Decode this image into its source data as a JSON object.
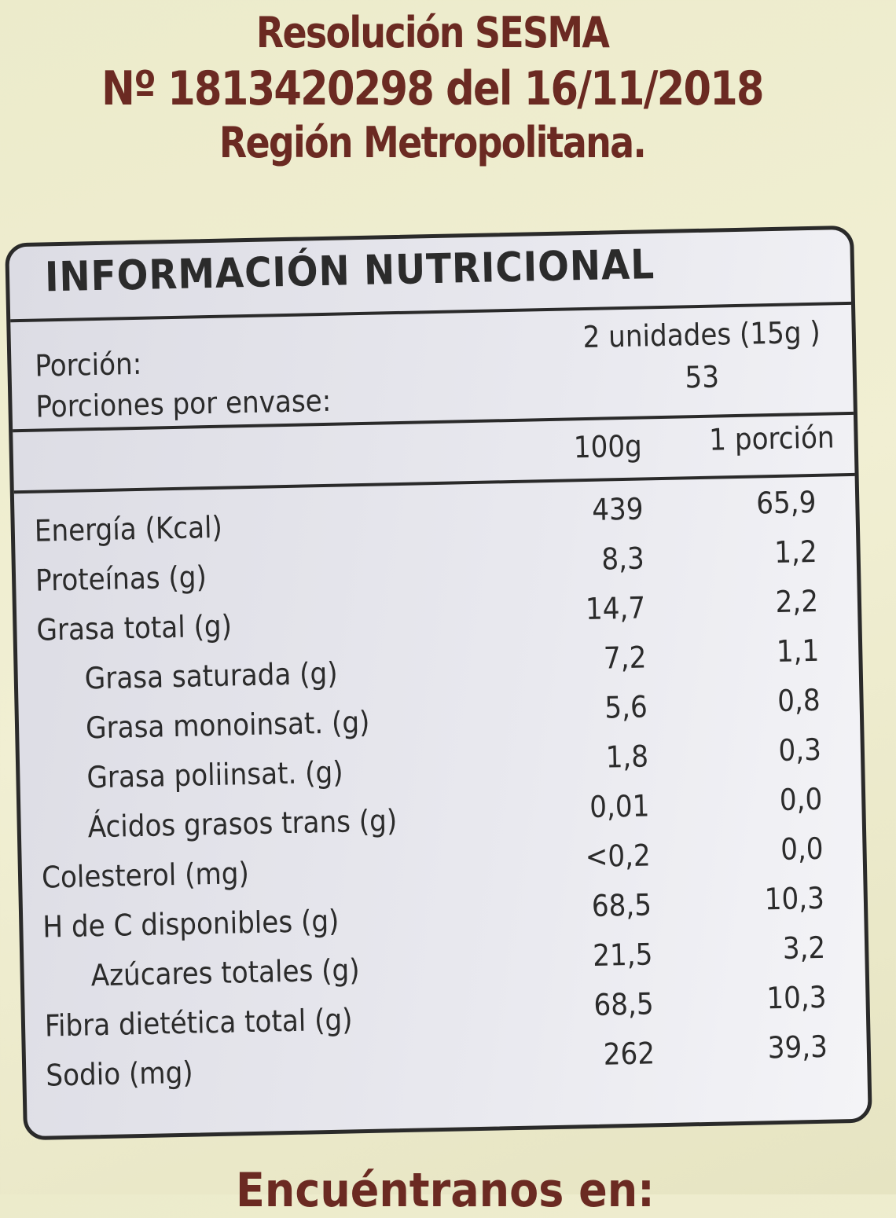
{
  "header_text": {
    "line1": "Resolución SESMA",
    "line2": "Nº 1813420298 del 16/11/2018",
    "line3": "Región Metropolitana."
  },
  "label": {
    "title": "INFORMACIÓN NUTRICIONAL",
    "portion_label": "Porción:",
    "portion_value": "2 unidades (15g )",
    "servings_label": "Porciones por envase:",
    "servings_value": "53",
    "col_100g": "100g",
    "col_portion": "1 porción",
    "rows": [
      {
        "name": "Energía (Kcal)",
        "v100": "439",
        "vpor": "65,9"
      },
      {
        "name": "Proteínas (g)",
        "v100": "8,3",
        "vpor": "1,2"
      },
      {
        "name": "Grasa total (g)",
        "v100": "14,7",
        "vpor": "2,2"
      },
      {
        "name": "Grasa saturada  (g)",
        "v100": "7,2",
        "vpor": "1,1"
      },
      {
        "name": "Grasa monoinsat. (g)",
        "v100": "5,6",
        "vpor": "0,8"
      },
      {
        "name": "Grasa poliinsat. (g)",
        "v100": "1,8",
        "vpor": "0,3"
      },
      {
        "name": "Ácidos grasos trans (g)",
        "v100": "0,01",
        "vpor": "0,0"
      },
      {
        "name": "Colesterol (mg)",
        "v100": "<0,2",
        "vpor": "0,0"
      },
      {
        "name": "H de C disponibles (g)",
        "v100": "68,5",
        "vpor": "10,3"
      },
      {
        "name": "Azúcares totales (g)",
        "v100": "21,5",
        "vpor": "3,2"
      },
      {
        "name": "Fibra dietética total (g)",
        "v100": "68,5",
        "vpor": "10,3"
      },
      {
        "name": "Sodio (mg)",
        "v100": "262",
        "vpor": "39,3"
      }
    ]
  },
  "footer_text": "Encuéntranos en:"
}
